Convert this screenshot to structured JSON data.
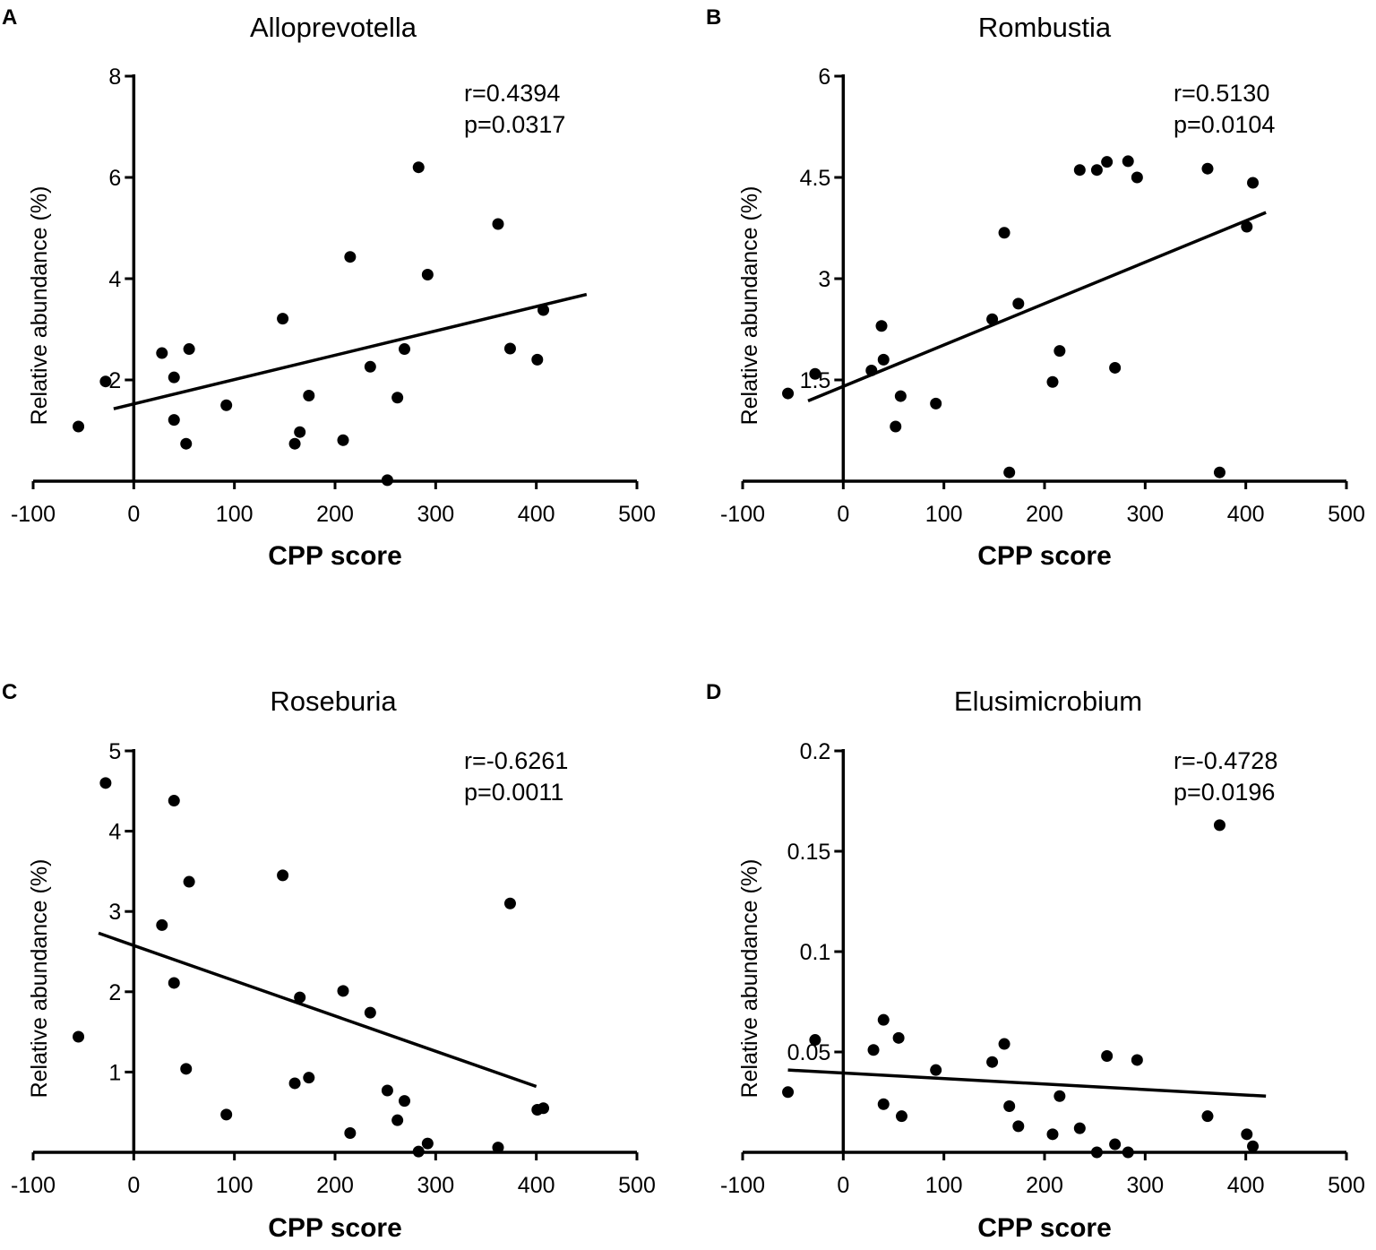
{
  "chart_data": [
    {
      "panel": "A",
      "type": "scatter",
      "title": "Alloprevotella",
      "xlabel": "CPP score",
      "ylabel": "Relative abundance (%)",
      "xlim": [
        -100,
        500
      ],
      "ylim": [
        0,
        8
      ],
      "xticks": [
        -100,
        0,
        100,
        200,
        300,
        400,
        500
      ],
      "yticks": [
        2,
        4,
        6,
        8
      ],
      "ytick_labels": [
        "2",
        "4",
        "6",
        "8"
      ],
      "stats": {
        "r": "r=0.4394",
        "p": "p=0.0317"
      },
      "points": [
        [
          -55,
          1.08
        ],
        [
          -28,
          1.97
        ],
        [
          28,
          2.53
        ],
        [
          40,
          2.05
        ],
        [
          40,
          1.21
        ],
        [
          52,
          0.74
        ],
        [
          55,
          2.61
        ],
        [
          92,
          1.5
        ],
        [
          148,
          3.21
        ],
        [
          160,
          0.74
        ],
        [
          165,
          0.97
        ],
        [
          174,
          1.69
        ],
        [
          208,
          0.81
        ],
        [
          215,
          4.43
        ],
        [
          235,
          2.26
        ],
        [
          252,
          0.02
        ],
        [
          262,
          1.65
        ],
        [
          269,
          2.61
        ],
        [
          283,
          6.2
        ],
        [
          292,
          4.08
        ],
        [
          362,
          5.08
        ],
        [
          374,
          2.62
        ],
        [
          401,
          2.4
        ],
        [
          407,
          3.38
        ]
      ],
      "fit_line": [
        [
          -20,
          1.43
        ],
        [
          450,
          3.69
        ]
      ]
    },
    {
      "panel": "B",
      "type": "scatter",
      "title": "Rombustia",
      "xlabel": "CPP score",
      "ylabel": "Relative abundance (%)",
      "xlim": [
        -100,
        500
      ],
      "ylim": [
        0,
        6
      ],
      "xticks": [
        -100,
        0,
        100,
        200,
        300,
        400,
        500
      ],
      "yticks": [
        1.5,
        3,
        4.5,
        6
      ],
      "ytick_labels": [
        "1.5",
        "3",
        "4.5",
        "6"
      ],
      "stats": {
        "r": "r=0.5130",
        "p": "p=0.0104"
      },
      "points": [
        [
          -55,
          1.3
        ],
        [
          -28,
          1.59
        ],
        [
          28,
          1.64
        ],
        [
          38,
          2.3
        ],
        [
          40,
          1.8
        ],
        [
          52,
          0.81
        ],
        [
          57,
          1.26
        ],
        [
          92,
          1.15
        ],
        [
          148,
          2.4
        ],
        [
          160,
          3.68
        ],
        [
          165,
          0.13
        ],
        [
          174,
          2.63
        ],
        [
          208,
          1.47
        ],
        [
          215,
          1.93
        ],
        [
          235,
          4.61
        ],
        [
          252,
          4.61
        ],
        [
          262,
          4.73
        ],
        [
          270,
          1.68
        ],
        [
          283,
          4.74
        ],
        [
          292,
          4.5
        ],
        [
          362,
          4.63
        ],
        [
          374,
          0.13
        ],
        [
          401,
          3.77
        ],
        [
          407,
          4.42
        ]
      ],
      "fit_line": [
        [
          -35,
          1.19
        ],
        [
          420,
          3.98
        ]
      ]
    },
    {
      "panel": "C",
      "type": "scatter",
      "title": "Roseburia",
      "xlabel": "CPP score",
      "ylabel": "Relative abundance (%)",
      "xlim": [
        -100,
        500
      ],
      "ylim": [
        0,
        5
      ],
      "xticks": [
        -100,
        0,
        100,
        200,
        300,
        400,
        500
      ],
      "yticks": [
        1,
        2,
        3,
        4,
        5
      ],
      "ytick_labels": [
        "1",
        "2",
        "3",
        "4",
        "5"
      ],
      "stats": {
        "r": "r=-0.6261",
        "p": "p=0.0011"
      },
      "points": [
        [
          -55,
          1.44
        ],
        [
          -28,
          4.6
        ],
        [
          28,
          2.83
        ],
        [
          40,
          4.38
        ],
        [
          40,
          2.11
        ],
        [
          52,
          1.04
        ],
        [
          55,
          3.37
        ],
        [
          92,
          0.47
        ],
        [
          148,
          3.45
        ],
        [
          160,
          0.86
        ],
        [
          165,
          1.93
        ],
        [
          174,
          0.93
        ],
        [
          208,
          2.01
        ],
        [
          215,
          0.24
        ],
        [
          235,
          1.74
        ],
        [
          252,
          0.77
        ],
        [
          262,
          0.4
        ],
        [
          269,
          0.64
        ],
        [
          283,
          0.01
        ],
        [
          292,
          0.11
        ],
        [
          362,
          0.06
        ],
        [
          374,
          3.1
        ],
        [
          401,
          0.53
        ],
        [
          407,
          0.55
        ]
      ],
      "fit_line": [
        [
          -35,
          2.73
        ],
        [
          400,
          0.82
        ]
      ]
    },
    {
      "panel": "D",
      "type": "scatter",
      "title": "Elusimicrobium",
      "xlabel": "CPP score",
      "ylabel": "Relative abundance (%)",
      "xlim": [
        -100,
        500
      ],
      "ylim": [
        0,
        0.2
      ],
      "xticks": [
        -100,
        0,
        100,
        200,
        300,
        400,
        500
      ],
      "yticks": [
        0.05,
        0.1,
        0.15,
        0.2
      ],
      "ytick_labels": [
        "0.05",
        "0.1",
        "0.15",
        "0.2"
      ],
      "stats": {
        "r": "r=-0.4728",
        "p": "p=0.0196"
      },
      "points": [
        [
          -55,
          0.03
        ],
        [
          -28,
          0.056
        ],
        [
          30,
          0.051
        ],
        [
          40,
          0.066
        ],
        [
          40,
          0.024
        ],
        [
          55,
          0.057
        ],
        [
          58,
          0.018
        ],
        [
          92,
          0.041
        ],
        [
          148,
          0.045
        ],
        [
          160,
          0.054
        ],
        [
          165,
          0.023
        ],
        [
          174,
          0.013
        ],
        [
          208,
          0.009
        ],
        [
          215,
          0.028
        ],
        [
          235,
          0.012
        ],
        [
          252,
          0.0
        ],
        [
          262,
          0.048
        ],
        [
          270,
          0.004
        ],
        [
          283,
          0.0
        ],
        [
          292,
          0.046
        ],
        [
          362,
          0.018
        ],
        [
          374,
          0.163
        ],
        [
          401,
          0.009
        ],
        [
          407,
          0.003
        ]
      ],
      "fit_line": [
        [
          -55,
          0.041
        ],
        [
          420,
          0.028
        ]
      ]
    }
  ]
}
